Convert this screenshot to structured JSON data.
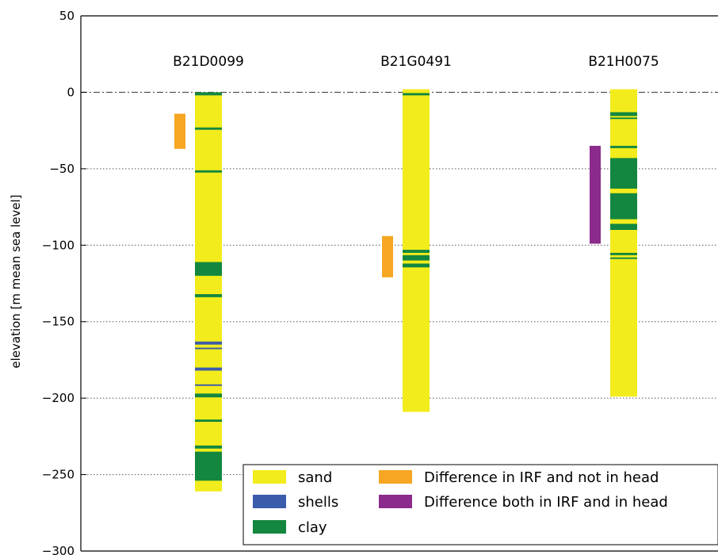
{
  "chart_data": {
    "type": "bar",
    "ylabel": "elevation [m mean sea level]",
    "ylim": [
      -300,
      50
    ],
    "y_ticks": [
      50,
      0,
      -50,
      -100,
      -150,
      -200,
      -250,
      -300
    ],
    "y_tick_labels": [
      "50",
      "0",
      "−50",
      "−100",
      "−150",
      "−200",
      "−250",
      "−300"
    ],
    "grid": "horizontal dotted",
    "reference_line": {
      "y": 0,
      "style": "dash-dot"
    },
    "legend_position": "bottom-right",
    "colors": {
      "sand": "#f2ec1c",
      "shells": "#3b5bab",
      "clay": "#13873f",
      "irf_only": "#f6a623",
      "irf_and_head": "#8b2b8c"
    },
    "legend": [
      {
        "key": "sand",
        "label": "sand"
      },
      {
        "key": "shells",
        "label": "shells"
      },
      {
        "key": "clay",
        "label": "clay"
      },
      {
        "key": "irf_only",
        "label": "Difference in IRF and not in head"
      },
      {
        "key": "irf_and_head",
        "label": "Difference both in IRF and in head"
      }
    ],
    "boreholes": [
      {
        "name": "B21D0099",
        "top": 0,
        "bottom": -261,
        "layers": [
          {
            "material": "clay",
            "from": 0,
            "to": -2
          },
          {
            "material": "clay",
            "from": -23,
            "to": -24.5
          },
          {
            "material": "clay",
            "from": -51,
            "to": -52.5
          },
          {
            "material": "clay",
            "from": -111,
            "to": -120
          },
          {
            "material": "clay",
            "from": -132,
            "to": -134
          },
          {
            "material": "shells",
            "from": -163,
            "to": -165
          },
          {
            "material": "shells",
            "from": -167,
            "to": -168
          },
          {
            "material": "shells",
            "from": -180,
            "to": -182
          },
          {
            "material": "shells",
            "from": -191,
            "to": -192
          },
          {
            "material": "clay",
            "from": -197,
            "to": -199.5
          },
          {
            "material": "clay",
            "from": -214,
            "to": -215.5
          },
          {
            "material": "clay",
            "from": -231,
            "to": -233
          },
          {
            "material": "clay",
            "from": -235,
            "to": -254
          }
        ],
        "markers": [
          {
            "type": "irf_only",
            "from": -14,
            "to": -37
          }
        ]
      },
      {
        "name": "B21G0491",
        "top": 2,
        "bottom": -209,
        "layers": [
          {
            "material": "clay",
            "from": -0.5,
            "to": -2
          },
          {
            "material": "clay",
            "from": -103,
            "to": -105
          },
          {
            "material": "clay",
            "from": -106.5,
            "to": -110
          },
          {
            "material": "clay",
            "from": -112,
            "to": -114.5
          }
        ],
        "markers": [
          {
            "type": "irf_only",
            "from": -94,
            "to": -121
          }
        ]
      },
      {
        "name": "B21H0075",
        "top": 2,
        "bottom": -199,
        "layers": [
          {
            "material": "clay",
            "from": -13,
            "to": -15.5
          },
          {
            "material": "clay",
            "from": -16.5,
            "to": -17.5
          },
          {
            "material": "clay",
            "from": -35,
            "to": -36.5
          },
          {
            "material": "clay",
            "from": -43,
            "to": -63
          },
          {
            "material": "clay",
            "from": -66,
            "to": -83
          },
          {
            "material": "clay",
            "from": -86,
            "to": -90
          },
          {
            "material": "clay",
            "from": -105,
            "to": -106.5
          },
          {
            "material": "clay",
            "from": -108,
            "to": -109
          }
        ],
        "markers": [
          {
            "type": "irf_and_head",
            "from": -35,
            "to": -99
          }
        ]
      }
    ]
  }
}
